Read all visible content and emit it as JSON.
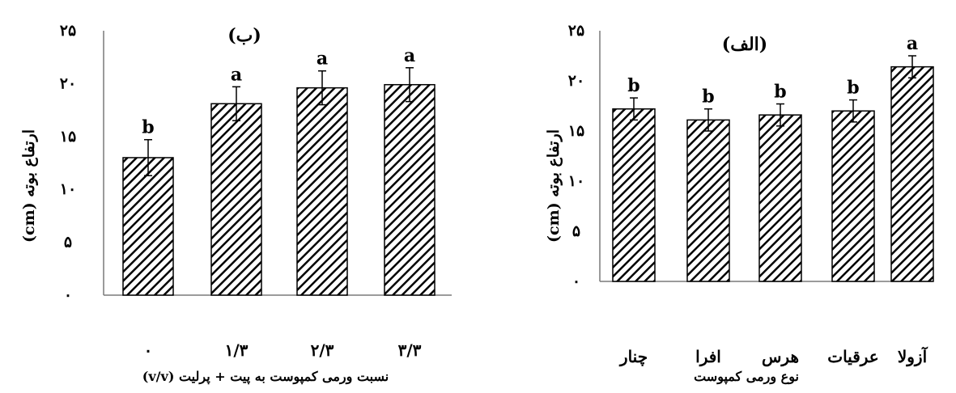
{
  "chart_data": [
    {
      "panel": "right",
      "type": "bar",
      "title": "(الف)",
      "xlabel": "نوع ورمی کمپوست",
      "ylabel": "ارتفاع بوته (cm)",
      "ylim": [
        0,
        25
      ],
      "yticks": [
        "۰",
        "۵",
        "۱۰",
        "۱۵",
        "۲۰",
        "۲۵"
      ],
      "categories": [
        "چنار",
        "افرا",
        "هرس",
        "عرقیات",
        "آزولا"
      ],
      "values": [
        17.2,
        16.1,
        16.6,
        17.0,
        21.4
      ],
      "errors": [
        1.1,
        1.1,
        1.1,
        1.1,
        1.1
      ],
      "letters": [
        "b",
        "b",
        "b",
        "b",
        "a"
      ],
      "bar_pattern": "diagonal-hatch",
      "grid": false
    },
    {
      "panel": "left",
      "type": "bar",
      "title": "(ب)",
      "xlabel": "نسبت ورمی کمپوست به پیت + پرلیت (v/v)",
      "ylabel": "ارتفاع بوته (cm)",
      "ylim": [
        0,
        25
      ],
      "yticks": [
        "۰",
        "۵",
        "۱۰",
        "۱۵",
        "۲۰",
        "۲۵"
      ],
      "categories": [
        "۰",
        "۱/۳",
        "۲/۳",
        "۳/۳"
      ],
      "values": [
        13.0,
        18.1,
        19.6,
        19.9
      ],
      "errors": [
        1.7,
        1.6,
        1.6,
        1.6
      ],
      "letters": [
        "b",
        "a",
        "a",
        "a"
      ],
      "bar_pattern": "diagonal-hatch",
      "grid": false
    }
  ]
}
